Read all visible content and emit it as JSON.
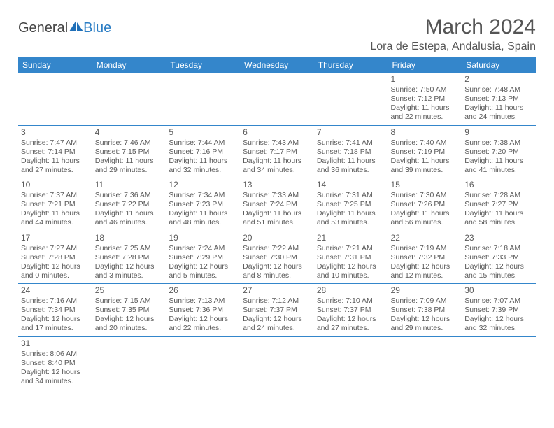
{
  "logo": {
    "textA": "General",
    "textB": "Blue",
    "iconColor": "#1f6fb8"
  },
  "title": "March 2024",
  "location": "Lora de Estepa, Andalusia, Spain",
  "headerBg": "#3486cb",
  "dayNames": [
    "Sunday",
    "Monday",
    "Tuesday",
    "Wednesday",
    "Thursday",
    "Friday",
    "Saturday"
  ],
  "weeks": [
    [
      null,
      null,
      null,
      null,
      null,
      {
        "n": "1",
        "sr": "Sunrise: 7:50 AM",
        "ss": "Sunset: 7:12 PM",
        "d1": "Daylight: 11 hours",
        "d2": "and 22 minutes."
      },
      {
        "n": "2",
        "sr": "Sunrise: 7:48 AM",
        "ss": "Sunset: 7:13 PM",
        "d1": "Daylight: 11 hours",
        "d2": "and 24 minutes."
      }
    ],
    [
      {
        "n": "3",
        "sr": "Sunrise: 7:47 AM",
        "ss": "Sunset: 7:14 PM",
        "d1": "Daylight: 11 hours",
        "d2": "and 27 minutes."
      },
      {
        "n": "4",
        "sr": "Sunrise: 7:46 AM",
        "ss": "Sunset: 7:15 PM",
        "d1": "Daylight: 11 hours",
        "d2": "and 29 minutes."
      },
      {
        "n": "5",
        "sr": "Sunrise: 7:44 AM",
        "ss": "Sunset: 7:16 PM",
        "d1": "Daylight: 11 hours",
        "d2": "and 32 minutes."
      },
      {
        "n": "6",
        "sr": "Sunrise: 7:43 AM",
        "ss": "Sunset: 7:17 PM",
        "d1": "Daylight: 11 hours",
        "d2": "and 34 minutes."
      },
      {
        "n": "7",
        "sr": "Sunrise: 7:41 AM",
        "ss": "Sunset: 7:18 PM",
        "d1": "Daylight: 11 hours",
        "d2": "and 36 minutes."
      },
      {
        "n": "8",
        "sr": "Sunrise: 7:40 AM",
        "ss": "Sunset: 7:19 PM",
        "d1": "Daylight: 11 hours",
        "d2": "and 39 minutes."
      },
      {
        "n": "9",
        "sr": "Sunrise: 7:38 AM",
        "ss": "Sunset: 7:20 PM",
        "d1": "Daylight: 11 hours",
        "d2": "and 41 minutes."
      }
    ],
    [
      {
        "n": "10",
        "sr": "Sunrise: 7:37 AM",
        "ss": "Sunset: 7:21 PM",
        "d1": "Daylight: 11 hours",
        "d2": "and 44 minutes."
      },
      {
        "n": "11",
        "sr": "Sunrise: 7:36 AM",
        "ss": "Sunset: 7:22 PM",
        "d1": "Daylight: 11 hours",
        "d2": "and 46 minutes."
      },
      {
        "n": "12",
        "sr": "Sunrise: 7:34 AM",
        "ss": "Sunset: 7:23 PM",
        "d1": "Daylight: 11 hours",
        "d2": "and 48 minutes."
      },
      {
        "n": "13",
        "sr": "Sunrise: 7:33 AM",
        "ss": "Sunset: 7:24 PM",
        "d1": "Daylight: 11 hours",
        "d2": "and 51 minutes."
      },
      {
        "n": "14",
        "sr": "Sunrise: 7:31 AM",
        "ss": "Sunset: 7:25 PM",
        "d1": "Daylight: 11 hours",
        "d2": "and 53 minutes."
      },
      {
        "n": "15",
        "sr": "Sunrise: 7:30 AM",
        "ss": "Sunset: 7:26 PM",
        "d1": "Daylight: 11 hours",
        "d2": "and 56 minutes."
      },
      {
        "n": "16",
        "sr": "Sunrise: 7:28 AM",
        "ss": "Sunset: 7:27 PM",
        "d1": "Daylight: 11 hours",
        "d2": "and 58 minutes."
      }
    ],
    [
      {
        "n": "17",
        "sr": "Sunrise: 7:27 AM",
        "ss": "Sunset: 7:28 PM",
        "d1": "Daylight: 12 hours",
        "d2": "and 0 minutes."
      },
      {
        "n": "18",
        "sr": "Sunrise: 7:25 AM",
        "ss": "Sunset: 7:28 PM",
        "d1": "Daylight: 12 hours",
        "d2": "and 3 minutes."
      },
      {
        "n": "19",
        "sr": "Sunrise: 7:24 AM",
        "ss": "Sunset: 7:29 PM",
        "d1": "Daylight: 12 hours",
        "d2": "and 5 minutes."
      },
      {
        "n": "20",
        "sr": "Sunrise: 7:22 AM",
        "ss": "Sunset: 7:30 PM",
        "d1": "Daylight: 12 hours",
        "d2": "and 8 minutes."
      },
      {
        "n": "21",
        "sr": "Sunrise: 7:21 AM",
        "ss": "Sunset: 7:31 PM",
        "d1": "Daylight: 12 hours",
        "d2": "and 10 minutes."
      },
      {
        "n": "22",
        "sr": "Sunrise: 7:19 AM",
        "ss": "Sunset: 7:32 PM",
        "d1": "Daylight: 12 hours",
        "d2": "and 12 minutes."
      },
      {
        "n": "23",
        "sr": "Sunrise: 7:18 AM",
        "ss": "Sunset: 7:33 PM",
        "d1": "Daylight: 12 hours",
        "d2": "and 15 minutes."
      }
    ],
    [
      {
        "n": "24",
        "sr": "Sunrise: 7:16 AM",
        "ss": "Sunset: 7:34 PM",
        "d1": "Daylight: 12 hours",
        "d2": "and 17 minutes."
      },
      {
        "n": "25",
        "sr": "Sunrise: 7:15 AM",
        "ss": "Sunset: 7:35 PM",
        "d1": "Daylight: 12 hours",
        "d2": "and 20 minutes."
      },
      {
        "n": "26",
        "sr": "Sunrise: 7:13 AM",
        "ss": "Sunset: 7:36 PM",
        "d1": "Daylight: 12 hours",
        "d2": "and 22 minutes."
      },
      {
        "n": "27",
        "sr": "Sunrise: 7:12 AM",
        "ss": "Sunset: 7:37 PM",
        "d1": "Daylight: 12 hours",
        "d2": "and 24 minutes."
      },
      {
        "n": "28",
        "sr": "Sunrise: 7:10 AM",
        "ss": "Sunset: 7:37 PM",
        "d1": "Daylight: 12 hours",
        "d2": "and 27 minutes."
      },
      {
        "n": "29",
        "sr": "Sunrise: 7:09 AM",
        "ss": "Sunset: 7:38 PM",
        "d1": "Daylight: 12 hours",
        "d2": "and 29 minutes."
      },
      {
        "n": "30",
        "sr": "Sunrise: 7:07 AM",
        "ss": "Sunset: 7:39 PM",
        "d1": "Daylight: 12 hours",
        "d2": "and 32 minutes."
      }
    ],
    [
      {
        "n": "31",
        "sr": "Sunrise: 8:06 AM",
        "ss": "Sunset: 8:40 PM",
        "d1": "Daylight: 12 hours",
        "d2": "and 34 minutes."
      },
      null,
      null,
      null,
      null,
      null,
      null
    ]
  ]
}
